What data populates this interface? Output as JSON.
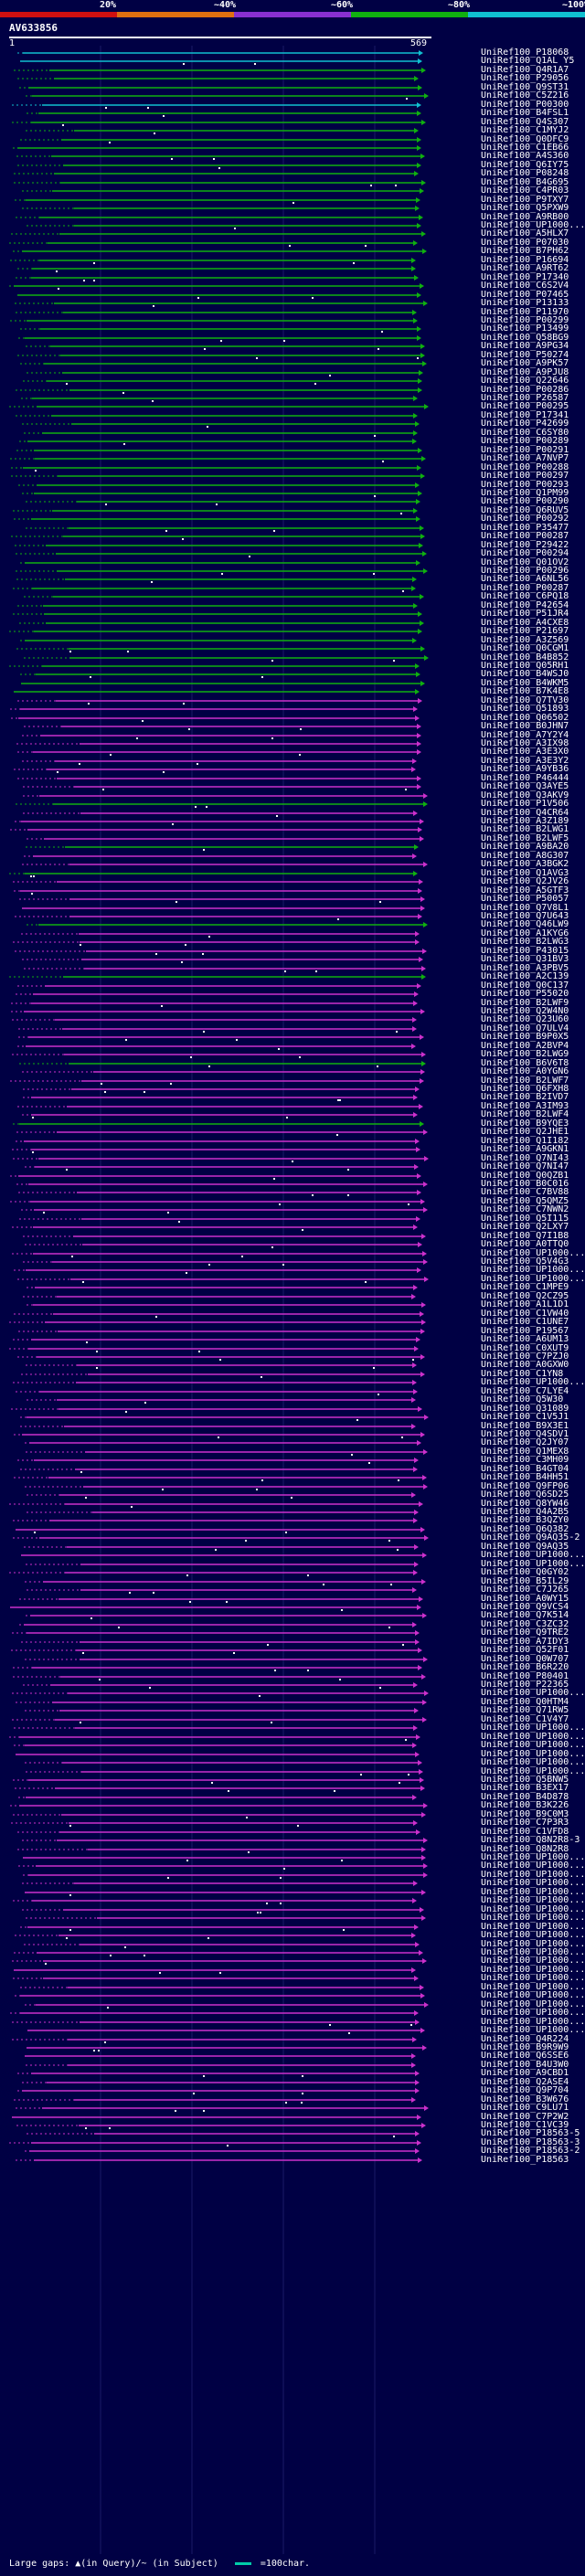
{
  "legend": {
    "labels": [
      "20%",
      "~40%",
      "~60%",
      "~80%",
      "~100%"
    ],
    "colors": [
      "#d01010",
      "#e07010",
      "#8830d0",
      "#10b010",
      "#10c0d0"
    ]
  },
  "query": {
    "id": "AV633856",
    "start": "1",
    "end": "569"
  },
  "hits": [
    {
      "id": "UniRef100_P18068",
      "color": "#10c0d0"
    },
    {
      "id": "UniRef100_Q1AL Y5",
      "color": "#10c0d0"
    },
    {
      "id": "UniRef100_Q4R1A7",
      "color": "#10b010"
    },
    {
      "id": "UniRef100_P29056",
      "color": "#10b010"
    },
    {
      "id": "UniRef100_Q9ST31",
      "color": "#10b010"
    },
    {
      "id": "UniRef100_C5Z216",
      "color": "#10b010"
    },
    {
      "id": "UniRef100_P00300",
      "color": "#10c0d0"
    },
    {
      "id": "UniRef100_B4FSL1",
      "color": "#10b010"
    },
    {
      "id": "UniRef100_Q4S307",
      "color": "#10b010"
    },
    {
      "id": "UniRef100_C1MYJ2",
      "color": "#10b010"
    },
    {
      "id": "UniRef100_Q0DFC9",
      "color": "#10b010"
    },
    {
      "id": "UniRef100_C1EB66",
      "color": "#10b010"
    },
    {
      "id": "UniRef100_A4S360",
      "color": "#10b010"
    },
    {
      "id": "UniRef100_Q6IY75",
      "color": "#10b010"
    },
    {
      "id": "UniRef100_P08248",
      "color": "#10b010"
    },
    {
      "id": "UniRef100_B4G695",
      "color": "#10b010"
    },
    {
      "id": "UniRef100_C4PR03",
      "color": "#10b010"
    },
    {
      "id": "UniRef100_P9TXY7",
      "color": "#10b010"
    },
    {
      "id": "UniRef100_Q5PXW9",
      "color": "#10b010"
    },
    {
      "id": "UniRef100_A9RB00",
      "color": "#10b010"
    },
    {
      "id": "UniRef100_UP1000...",
      "color": "#10b010"
    },
    {
      "id": "UniRef100_A5HLX7",
      "color": "#10b010"
    },
    {
      "id": "UniRef100_P07030",
      "color": "#10b010"
    },
    {
      "id": "UniRef100_B7PH62",
      "color": "#10b010"
    },
    {
      "id": "UniRef100_P16694",
      "color": "#10b010"
    },
    {
      "id": "UniRef100_A9RT62",
      "color": "#10b010"
    },
    {
      "id": "UniRef100_P17340",
      "color": "#10b010"
    },
    {
      "id": "UniRef100_C6S2V4",
      "color": "#10b010"
    },
    {
      "id": "UniRef100_P07465",
      "color": "#10b010"
    },
    {
      "id": "UniRef100_P13133",
      "color": "#10b010"
    },
    {
      "id": "UniRef100_P11970",
      "color": "#10b010"
    },
    {
      "id": "UniRef100_P00299",
      "color": "#10b010"
    },
    {
      "id": "UniRef100_P13499",
      "color": "#10b010"
    },
    {
      "id": "UniRef100_Q58BG9",
      "color": "#10b010"
    },
    {
      "id": "UniRef100_A9PG34",
      "color": "#10b010"
    },
    {
      "id": "UniRef100_P50274",
      "color": "#10b010"
    },
    {
      "id": "UniRef100_A9PK57",
      "color": "#10b010"
    },
    {
      "id": "UniRef100_A9PJU8",
      "color": "#10b010"
    },
    {
      "id": "UniRef100_Q22646",
      "color": "#10b010"
    },
    {
      "id": "UniRef100_P00286",
      "color": "#10b010"
    },
    {
      "id": "UniRef100_P26587",
      "color": "#10b010"
    },
    {
      "id": "UniRef100_P00295",
      "color": "#10b010"
    },
    {
      "id": "UniRef100_P17341",
      "color": "#10b010"
    },
    {
      "id": "UniRef100_P42699",
      "color": "#10b010"
    },
    {
      "id": "UniRef100_C6SY80",
      "color": "#10b010"
    },
    {
      "id": "UniRef100_P00289",
      "color": "#10b010"
    },
    {
      "id": "UniRef100_P00291",
      "color": "#10b010"
    },
    {
      "id": "UniRef100_A7NVP7",
      "color": "#10b010"
    },
    {
      "id": "UniRef100_P00288",
      "color": "#10b010"
    },
    {
      "id": "UniRef100_P00297",
      "color": "#10b010"
    },
    {
      "id": "UniRef100_P00293",
      "color": "#10b010"
    },
    {
      "id": "UniRef100_Q1PM99",
      "color": "#10b010"
    },
    {
      "id": "UniRef100_P00290",
      "color": "#10b010"
    },
    {
      "id": "UniRef100_Q6RUV5",
      "color": "#10b010"
    },
    {
      "id": "UniRef100_P00292",
      "color": "#10b010"
    },
    {
      "id": "UniRef100_P35477",
      "color": "#10b010"
    },
    {
      "id": "UniRef100_P00287",
      "color": "#10b010"
    },
    {
      "id": "UniRef100_P29422",
      "color": "#10b010"
    },
    {
      "id": "UniRef100_P00294",
      "color": "#10b010"
    },
    {
      "id": "UniRef100_Q01OV2",
      "color": "#10b010"
    },
    {
      "id": "UniRef100_P00296",
      "color": "#10b010"
    },
    {
      "id": "UniRef100_A6NL56",
      "color": "#10b010"
    },
    {
      "id": "UniRef100_P00287",
      "color": "#10b010"
    },
    {
      "id": "UniRef100_C6PQ18",
      "color": "#10b010"
    },
    {
      "id": "UniRef100_P42654",
      "color": "#10b010"
    },
    {
      "id": "UniRef100_P51JR4",
      "color": "#10b010"
    },
    {
      "id": "UniRef100_A4CXE8",
      "color": "#10b010"
    },
    {
      "id": "UniRef100_P21697",
      "color": "#10b010"
    },
    {
      "id": "UniRef100_A3Z569",
      "color": "#10b010"
    },
    {
      "id": "UniRef100_Q0CGM1",
      "color": "#10b010"
    },
    {
      "id": "UniRef100_B4B852",
      "color": "#10b010"
    },
    {
      "id": "UniRef100_Q05RH1",
      "color": "#10b010"
    },
    {
      "id": "UniRef100_B4WSJ0",
      "color": "#10b010"
    },
    {
      "id": "UniRef100_B4WKM5",
      "color": "#10b010"
    },
    {
      "id": "UniRef100_B7K4E8",
      "color": "#10b010"
    },
    {
      "id": "UniRef100_Q7TV30",
      "color": "#cc30cc"
    },
    {
      "id": "UniRef100_Q51893",
      "color": "#cc30cc"
    },
    {
      "id": "UniRef100_Q06502",
      "color": "#cc30cc"
    },
    {
      "id": "UniRef100_B0JHN7",
      "color": "#cc30cc"
    },
    {
      "id": "UniRef100_A7Y2Y4",
      "color": "#cc30cc"
    },
    {
      "id": "UniRef100_A3IX98",
      "color": "#cc30cc"
    },
    {
      "id": "UniRef100_A3E3X0",
      "color": "#cc30cc"
    },
    {
      "id": "UniRef100_A3E3Y2",
      "color": "#cc30cc"
    },
    {
      "id": "UniRef100_A9YB36",
      "color": "#cc30cc"
    },
    {
      "id": "UniRef100_P46444",
      "color": "#cc30cc"
    },
    {
      "id": "UniRef100_Q3AYE5",
      "color": "#cc30cc"
    },
    {
      "id": "UniRef100_Q3AKV9",
      "color": "#cc30cc"
    },
    {
      "id": "UniRef100_P1V506",
      "color": "#10b010"
    },
    {
      "id": "UniRef100_Q4CR64",
      "color": "#cc30cc"
    },
    {
      "id": "UniRef100_A3Z189",
      "color": "#cc30cc"
    },
    {
      "id": "UniRef100_B2LWG1",
      "color": "#cc30cc"
    },
    {
      "id": "UniRef100_B2LWF5",
      "color": "#cc30cc"
    },
    {
      "id": "UniRef100_A9BA20",
      "color": "#10b010"
    },
    {
      "id": "UniRef100_A8G307",
      "color": "#cc30cc"
    },
    {
      "id": "UniRef100_A3BGK2",
      "color": "#cc30cc"
    },
    {
      "id": "UniRef100_Q1AVG3",
      "color": "#10b010"
    },
    {
      "id": "UniRef100_Q2JV26",
      "color": "#cc30cc"
    },
    {
      "id": "UniRef100_A5GTF3",
      "color": "#cc30cc"
    },
    {
      "id": "UniRef100_P50057",
      "color": "#cc30cc"
    },
    {
      "id": "UniRef100_Q7V8L1",
      "color": "#cc30cc"
    },
    {
      "id": "UniRef100_Q7U643",
      "color": "#cc30cc"
    },
    {
      "id": "UniRef100_Q46LW9",
      "color": "#10b010"
    },
    {
      "id": "UniRef100_A1KYG6",
      "color": "#cc30cc"
    },
    {
      "id": "UniRef100_B2LWG3",
      "color": "#cc30cc"
    },
    {
      "id": "UniRef100_P43015",
      "color": "#cc30cc"
    },
    {
      "id": "UniRef100_Q31BV3",
      "color": "#cc30cc"
    },
    {
      "id": "UniRef100_A3PBV5",
      "color": "#cc30cc"
    },
    {
      "id": "UniRef100_A2C139",
      "color": "#10b010"
    },
    {
      "id": "UniRef100_Q0C137",
      "color": "#cc30cc"
    },
    {
      "id": "UniRef100_P55020",
      "color": "#cc30cc"
    },
    {
      "id": "UniRef100_B2LWF9",
      "color": "#cc30cc"
    },
    {
      "id": "UniRef100_Q2W4N0",
      "color": "#cc30cc"
    },
    {
      "id": "UniRef100_Q23U60",
      "color": "#cc30cc"
    },
    {
      "id": "UniRef100_Q7ULV4",
      "color": "#cc30cc"
    },
    {
      "id": "UniRef100_B9P0X5",
      "color": "#cc30cc"
    },
    {
      "id": "UniRef100_A2BVP4",
      "color": "#cc30cc"
    },
    {
      "id": "UniRef100_B2LWG9",
      "color": "#cc30cc"
    },
    {
      "id": "UniRef100_B6V6T8",
      "color": "#10b010"
    },
    {
      "id": "UniRef100_A0YGN6",
      "color": "#cc30cc"
    },
    {
      "id": "UniRef100_B2LWF7",
      "color": "#cc30cc"
    },
    {
      "id": "UniRef100_Q6FXH8",
      "color": "#cc30cc"
    },
    {
      "id": "UniRef100_B2IVD7",
      "color": "#cc30cc"
    },
    {
      "id": "UniRef100_A3IM93",
      "color": "#cc30cc"
    },
    {
      "id": "UniRef100_B2LWF4",
      "color": "#cc30cc"
    },
    {
      "id": "UniRef100_B9YQE3",
      "color": "#10b010"
    },
    {
      "id": "UniRef100_Q2JHE1",
      "color": "#cc30cc"
    },
    {
      "id": "UniRef100_Q1I182",
      "color": "#cc30cc"
    },
    {
      "id": "UniRef100_A9GKN1",
      "color": "#cc30cc"
    },
    {
      "id": "UniRef100_Q7NI43",
      "color": "#cc30cc"
    },
    {
      "id": "UniRef100_Q7NI47",
      "color": "#cc30cc"
    },
    {
      "id": "UniRef100_Q0QZB1",
      "color": "#cc30cc"
    },
    {
      "id": "UniRef100_B0C016",
      "color": "#cc30cc"
    },
    {
      "id": "UniRef100_C7BV88",
      "color": "#cc30cc"
    },
    {
      "id": "UniRef100_Q5QMZ5",
      "color": "#cc30cc"
    },
    {
      "id": "UniRef100_C7NWN2",
      "color": "#cc30cc"
    },
    {
      "id": "UniRef100_Q5I115",
      "color": "#cc30cc"
    },
    {
      "id": "UniRef100_Q2LXY7",
      "color": "#cc30cc"
    },
    {
      "id": "UniRef100_Q7I1B8",
      "color": "#cc30cc"
    },
    {
      "id": "UniRef100_A0TTQ0",
      "color": "#cc30cc"
    },
    {
      "id": "UniRef100_UP1000...",
      "color": "#cc30cc"
    },
    {
      "id": "UniRef100_Q5V4G3",
      "color": "#cc30cc"
    },
    {
      "id": "UniRef100_UP1000...",
      "color": "#cc30cc"
    },
    {
      "id": "UniRef100_UP1000...",
      "color": "#cc30cc"
    },
    {
      "id": "UniRef100_C1MPE9",
      "color": "#cc30cc"
    },
    {
      "id": "UniRef100_Q2CZ95",
      "color": "#cc30cc"
    },
    {
      "id": "UniRef100_A1L1D1",
      "color": "#cc30cc"
    },
    {
      "id": "UniRef100_C1VW40",
      "color": "#cc30cc"
    },
    {
      "id": "UniRef100_C1UNE7",
      "color": "#cc30cc"
    },
    {
      "id": "UniRef100_P19567",
      "color": "#cc30cc"
    },
    {
      "id": "UniRef100_A6UM13",
      "color": "#cc30cc"
    },
    {
      "id": "UniRef100_C0XUT9",
      "color": "#cc30cc"
    },
    {
      "id": "UniRef100_C7PZJ0",
      "color": "#cc30cc"
    },
    {
      "id": "UniRef100_A0GXW0",
      "color": "#cc30cc"
    },
    {
      "id": "UniRef100_C1YN8",
      "color": "#cc30cc"
    },
    {
      "id": "UniRef100_UP1000...",
      "color": "#cc30cc"
    },
    {
      "id": "UniRef100_C7LYE4",
      "color": "#cc30cc"
    },
    {
      "id": "UniRef100_Q5W30",
      "color": "#cc30cc"
    },
    {
      "id": "UniRef100_Q31089",
      "color": "#cc30cc"
    },
    {
      "id": "UniRef100_C1V5J1",
      "color": "#cc30cc"
    },
    {
      "id": "UniRef100_B9X3E1",
      "color": "#cc30cc"
    },
    {
      "id": "UniRef100_Q4SDV1",
      "color": "#cc30cc"
    },
    {
      "id": "UniRef100_Q2JY07",
      "color": "#cc30cc"
    },
    {
      "id": "UniRef100_Q1MEX8",
      "color": "#cc30cc"
    },
    {
      "id": "UniRef100_C3MH09",
      "color": "#cc30cc"
    },
    {
      "id": "UniRef100_B4GT04",
      "color": "#cc30cc"
    },
    {
      "id": "UniRef100_B4HH51",
      "color": "#cc30cc"
    },
    {
      "id": "UniRef100_Q9FP06",
      "color": "#cc30cc"
    },
    {
      "id": "UniRef100_Q6SD25",
      "color": "#cc30cc"
    },
    {
      "id": "UniRef100_Q8YW46",
      "color": "#cc30cc"
    },
    {
      "id": "UniRef100_Q4A2B5",
      "color": "#cc30cc"
    },
    {
      "id": "UniRef100_B3QZY0",
      "color": "#cc30cc"
    },
    {
      "id": "UniRef100_Q6Q382",
      "color": "#cc30cc"
    },
    {
      "id": "UniRef100_Q9AQ35-2",
      "color": "#cc30cc"
    },
    {
      "id": "UniRef100_Q9AQ35",
      "color": "#cc30cc"
    },
    {
      "id": "UniRef100_UP1000...",
      "color": "#cc30cc"
    },
    {
      "id": "UniRef100_UP1000...",
      "color": "#cc30cc"
    },
    {
      "id": "UniRef100_Q0GY02",
      "color": "#cc30cc"
    },
    {
      "id": "UniRef100_B5IL29",
      "color": "#cc30cc"
    },
    {
      "id": "UniRef100_C7J265",
      "color": "#cc30cc"
    },
    {
      "id": "UniRef100_A0WY15",
      "color": "#cc30cc"
    },
    {
      "id": "UniRef100_Q9VCS4",
      "color": "#cc30cc"
    },
    {
      "id": "UniRef100_Q7K514",
      "color": "#cc30cc"
    },
    {
      "id": "UniRef100_C3ZC32",
      "color": "#cc30cc"
    },
    {
      "id": "UniRef100_Q9TRE2",
      "color": "#cc30cc"
    },
    {
      "id": "UniRef100_A7IDY3",
      "color": "#cc30cc"
    },
    {
      "id": "UniRef100_Q52F01",
      "color": "#cc30cc"
    },
    {
      "id": "UniRef100_Q0W707",
      "color": "#cc30cc"
    },
    {
      "id": "UniRef100_B6R220",
      "color": "#cc30cc"
    },
    {
      "id": "UniRef100_P80401",
      "color": "#cc30cc"
    },
    {
      "id": "UniRef100_P22365",
      "color": "#cc30cc"
    },
    {
      "id": "UniRef100_UP1000...",
      "color": "#cc30cc"
    },
    {
      "id": "UniRef100_Q0HTM4",
      "color": "#cc30cc"
    },
    {
      "id": "UniRef100_Q71RW5",
      "color": "#cc30cc"
    },
    {
      "id": "UniRef100_C1V4Y7",
      "color": "#cc30cc"
    },
    {
      "id": "UniRef100_UP1000...",
      "color": "#cc30cc"
    },
    {
      "id": "UniRef100_UP1000...",
      "color": "#cc30cc"
    },
    {
      "id": "UniRef100_UP1000...",
      "color": "#cc30cc"
    },
    {
      "id": "UniRef100_UP1000...",
      "color": "#cc30cc"
    },
    {
      "id": "UniRef100_UP1000...",
      "color": "#cc30cc"
    },
    {
      "id": "UniRef100_UP1000...",
      "color": "#cc30cc"
    },
    {
      "id": "UniRef100_Q5BNW5",
      "color": "#cc30cc"
    },
    {
      "id": "UniRef100_B3EX17",
      "color": "#cc30cc"
    },
    {
      "id": "UniRef100_B4D878",
      "color": "#cc30cc"
    },
    {
      "id": "UniRef100_B3K226",
      "color": "#cc30cc"
    },
    {
      "id": "UniRef100_B9C0M3",
      "color": "#cc30cc"
    },
    {
      "id": "UniRef100_C7P3R3",
      "color": "#cc30cc"
    },
    {
      "id": "UniRef100_C1VFD8",
      "color": "#cc30cc"
    },
    {
      "id": "UniRef100_Q8N2R8-3",
      "color": "#cc30cc"
    },
    {
      "id": "UniRef100_Q8N2R8",
      "color": "#cc30cc"
    },
    {
      "id": "UniRef100_UP1000...",
      "color": "#cc30cc"
    },
    {
      "id": "UniRef100_UP1000...",
      "color": "#cc30cc"
    },
    {
      "id": "UniRef100_UP1000...",
      "color": "#cc30cc"
    },
    {
      "id": "UniRef100_UP1000...",
      "color": "#cc30cc"
    },
    {
      "id": "UniRef100_UP1000...",
      "color": "#cc30cc"
    },
    {
      "id": "UniRef100_UP1000...",
      "color": "#cc30cc"
    },
    {
      "id": "UniRef100_UP1000...",
      "color": "#cc30cc"
    },
    {
      "id": "UniRef100_UP1000...",
      "color": "#cc30cc"
    },
    {
      "id": "UniRef100_UP1000...",
      "color": "#cc30cc"
    },
    {
      "id": "UniRef100_UP1000...",
      "color": "#cc30cc"
    },
    {
      "id": "UniRef100_UP1000...",
      "color": "#cc30cc"
    },
    {
      "id": "UniRef100_UP1000...",
      "color": "#cc30cc"
    },
    {
      "id": "UniRef100_UP1000...",
      "color": "#cc30cc"
    },
    {
      "id": "UniRef100_UP1000...",
      "color": "#cc30cc"
    },
    {
      "id": "UniRef100_UP1000...",
      "color": "#cc30cc"
    },
    {
      "id": "UniRef100_UP1000...",
      "color": "#cc30cc"
    },
    {
      "id": "UniRef100_UP1000...",
      "color": "#cc30cc"
    },
    {
      "id": "UniRef100_UP1000...",
      "color": "#cc30cc"
    },
    {
      "id": "UniRef100_UP1000...",
      "color": "#cc30cc"
    },
    {
      "id": "UniRef100_UP1000...",
      "color": "#cc30cc"
    },
    {
      "id": "UniRef100_UP1000...",
      "color": "#cc30cc"
    },
    {
      "id": "UniRef100_Q4R224",
      "color": "#cc30cc"
    },
    {
      "id": "UniRef100_B9R9W9",
      "color": "#cc30cc"
    },
    {
      "id": "UniRef100_Q6SSE6",
      "color": "#cc30cc"
    },
    {
      "id": "UniRef100_B4U3W0",
      "color": "#cc30cc"
    },
    {
      "id": "UniRef100_A9CBD1",
      "color": "#cc30cc"
    },
    {
      "id": "UniRef100_Q2ASE4",
      "color": "#cc30cc"
    },
    {
      "id": "UniRef100_Q9P704",
      "color": "#cc30cc"
    },
    {
      "id": "UniRef100_B3W676",
      "color": "#cc30cc"
    },
    {
      "id": "UniRef100_C9LU71",
      "color": "#cc30cc"
    },
    {
      "id": "UniRef100_C7P2W2",
      "color": "#cc30cc"
    },
    {
      "id": "UniRef100_C1VC39",
      "color": "#cc30cc"
    },
    {
      "id": "UniRef100_P18563-5",
      "color": "#cc30cc"
    },
    {
      "id": "UniRef100_P18563-3",
      "color": "#cc30cc"
    },
    {
      "id": "UniRef100_P18563-2",
      "color": "#cc30cc"
    },
    {
      "id": "UniRef100_P18563",
      "color": "#cc30cc"
    }
  ],
  "footer": {
    "gaps_text": "Large gaps: ▲(in Query)/~ (in Subject)",
    "scale_label": "=100char.",
    "scale_color": "#00ccaa"
  }
}
